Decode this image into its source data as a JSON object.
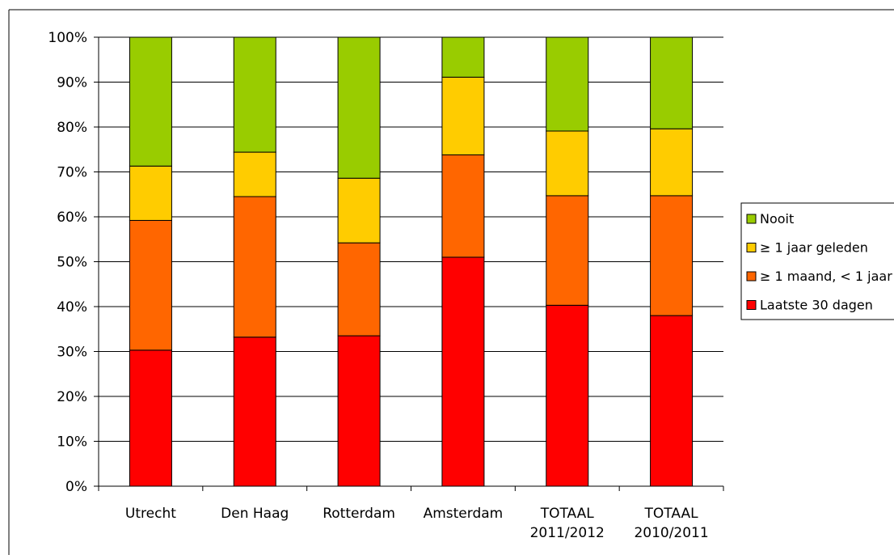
{
  "chart_data": {
    "type": "bar",
    "stacked": true,
    "categories": [
      [
        "Utrecht"
      ],
      [
        "Den Haag"
      ],
      [
        "Rotterdam"
      ],
      [
        "Amsterdam"
      ],
      [
        "TOTAAL",
        "2011/2012"
      ],
      [
        "TOTAAL",
        "2010/2011"
      ]
    ],
    "series": [
      {
        "name": "Laatste 30 dagen",
        "color": "#ff0000",
        "values": [
          30.3,
          33.2,
          33.5,
          51.0,
          40.3,
          38.0
        ]
      },
      {
        "name": "≥ 1 maand, < 1 jaar",
        "color": "#ff6600",
        "values": [
          28.9,
          31.3,
          20.7,
          22.8,
          24.4,
          26.7
        ]
      },
      {
        "name": "≥ 1 jaar geleden",
        "color": "#ffcc00",
        "values": [
          12.1,
          9.9,
          14.4,
          17.3,
          14.4,
          14.9
        ]
      },
      {
        "name": "Nooit",
        "color": "#99cc00",
        "values": [
          28.7,
          25.6,
          31.4,
          8.9,
          20.9,
          20.4
        ]
      }
    ],
    "y_ticks": [
      "0%",
      "10%",
      "20%",
      "30%",
      "40%",
      "50%",
      "60%",
      "70%",
      "80%",
      "90%",
      "100%"
    ],
    "ylim": [
      0,
      100
    ],
    "grid": true,
    "legend_position": "right",
    "legend_order": [
      "Nooit",
      "≥ 1 jaar geleden",
      "≥ 1 maand, < 1 jaar",
      "Laatste 30 dagen"
    ]
  }
}
